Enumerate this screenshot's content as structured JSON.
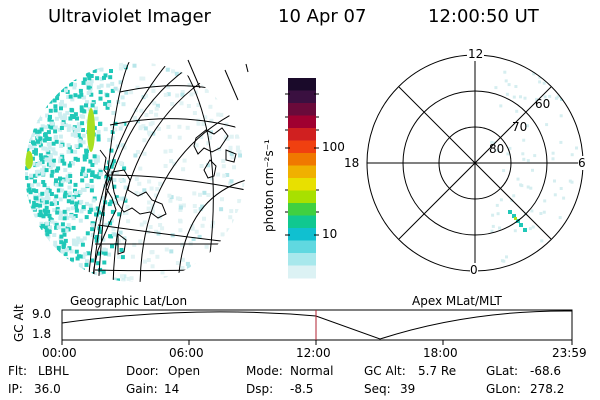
{
  "header": {
    "instrument": "Ultraviolet Imager",
    "date": "10 Apr 07",
    "time": "12:00:50 UT"
  },
  "colorbar": {
    "unit_label": "photon cm⁻²s⁻¹",
    "tick_labels": [
      "100",
      "10"
    ],
    "colors": [
      "#1a0a2a",
      "#3a1040",
      "#6a0a3a",
      "#a00030",
      "#d02020",
      "#f04010",
      "#f07800",
      "#f0b000",
      "#e8e000",
      "#a8e000",
      "#40d040",
      "#10c890",
      "#10c0d0",
      "#60d8e0",
      "#a8e8ec",
      "#dcf2f4"
    ]
  },
  "left_panel": {
    "caption": "Geographic Lat/Lon",
    "colors": {
      "aurora_cyan": "#20c8b8",
      "aurora_green": "#a8e020",
      "aurora_light": "#cceef0"
    }
  },
  "right_panel": {
    "caption": "Apex MLat/MLT",
    "mlt_labels": {
      "top": "12",
      "right": "6",
      "bottom": "0",
      "left": "18"
    },
    "lat_labels": [
      "60",
      "70",
      "80"
    ]
  },
  "altitude_plot": {
    "y_axis_label": "GC Alt",
    "y_ticks": [
      "9.0",
      "1.8"
    ],
    "x_ticks": [
      "00:00",
      "06:00",
      "12:00",
      "18:00",
      "23:59"
    ],
    "current_time_color": "#b02030"
  },
  "footer": {
    "row1": [
      {
        "label": "Flt:",
        "value": "LBHL"
      },
      {
        "label": "Door:",
        "value": "Open"
      },
      {
        "label": "Mode:",
        "value": "Normal"
      },
      {
        "label": "GC Alt:",
        "value": "5.7 Re"
      },
      {
        "label": "GLat:",
        "value": "-68.6"
      }
    ],
    "row2": [
      {
        "label": "IP:",
        "value": "36.0"
      },
      {
        "label": "Gain:",
        "value": "14"
      },
      {
        "label": "Dsp:",
        "value": "-8.5"
      },
      {
        "label": "Seq:",
        "value": "39"
      },
      {
        "label": "GLon:",
        "value": "278.2"
      }
    ]
  }
}
